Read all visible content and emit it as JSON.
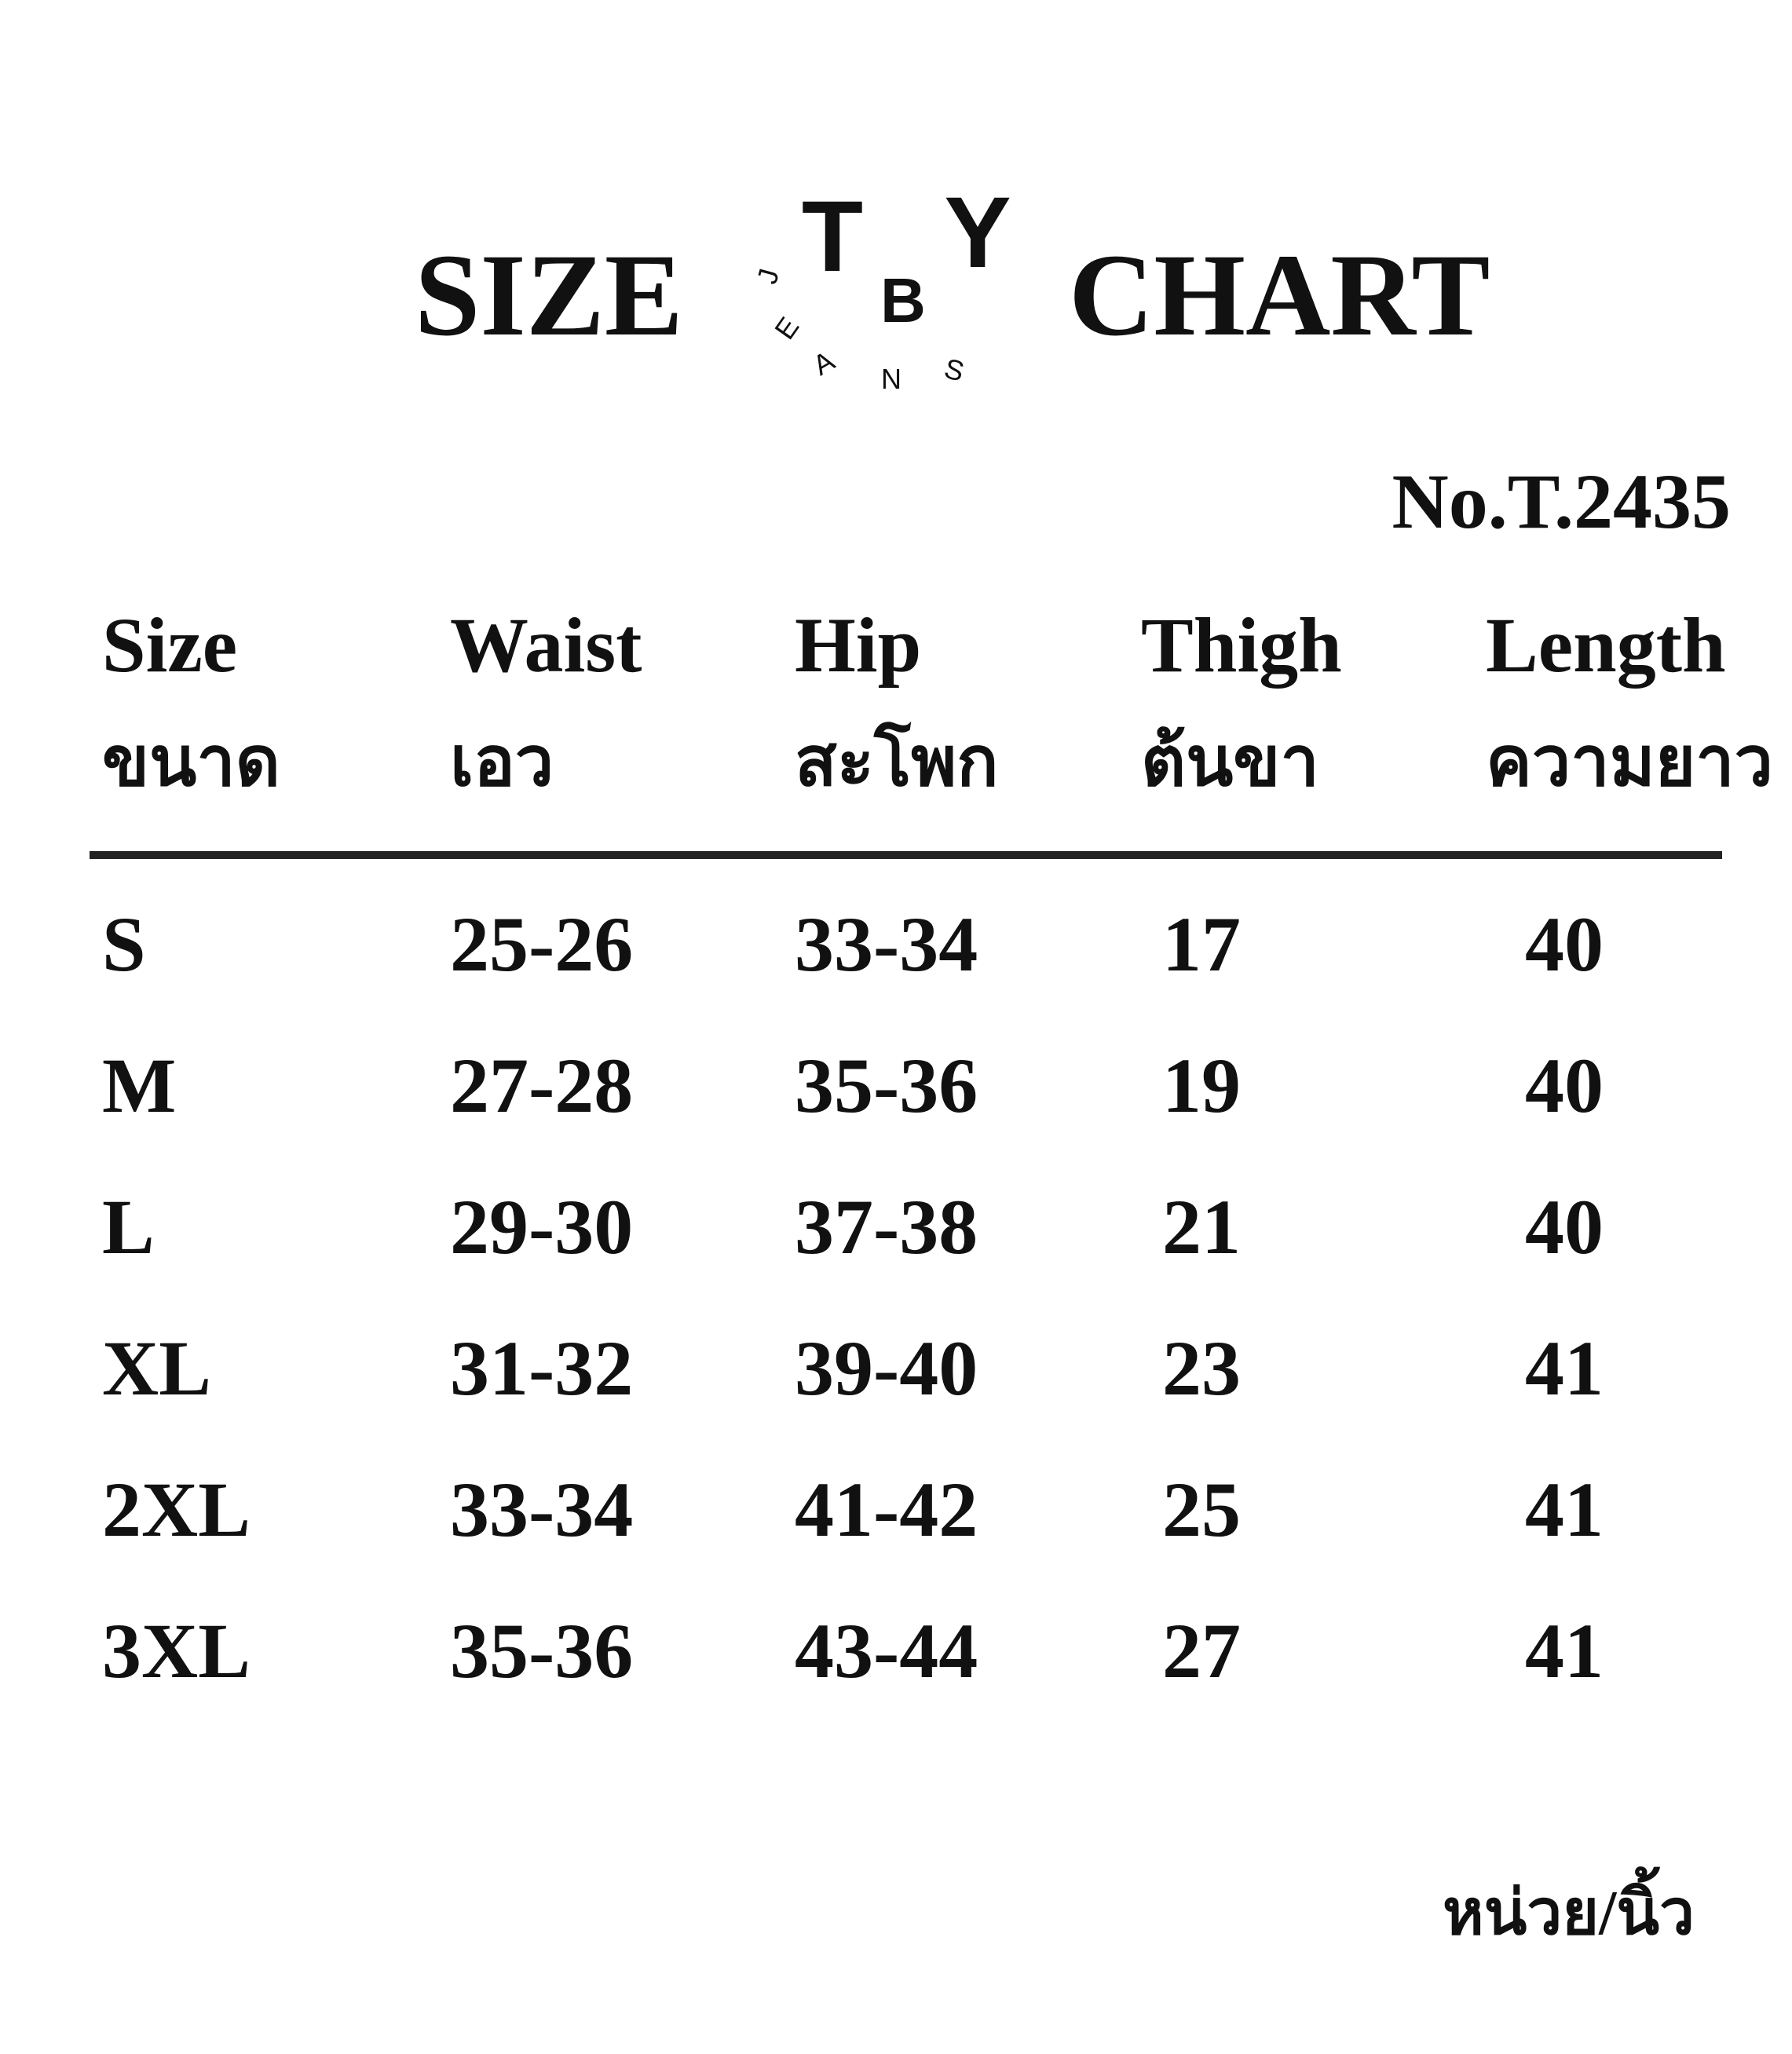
{
  "header": {
    "title_left": "SIZE",
    "title_right": "CHART",
    "logo": {
      "big": [
        "T",
        "B",
        "Y"
      ],
      "ring": [
        "J",
        "E",
        "A",
        "N",
        "S"
      ]
    },
    "model_no": "No.T.2435"
  },
  "table": {
    "columns": [
      {
        "en": "Size",
        "th": "ขนาด"
      },
      {
        "en": "Waist",
        "th": "เอว"
      },
      {
        "en": "Hip",
        "th": "สะโพก"
      },
      {
        "en": "Thigh",
        "th": "ต้นขา"
      },
      {
        "en": "Length",
        "th": "ความยาว"
      }
    ],
    "rows": [
      [
        "S",
        "25-26",
        "33-34",
        17,
        40
      ],
      [
        "M",
        "27-28",
        "35-36",
        19,
        40
      ],
      [
        "L",
        "29-30",
        "37-38",
        21,
        40
      ],
      [
        "XL",
        "31-32",
        "39-40",
        23,
        41
      ],
      [
        "2XL",
        "33-34",
        "41-42",
        25,
        41
      ],
      [
        "3XL",
        "35-36",
        "43-44",
        27,
        41
      ]
    ]
  },
  "footer": {
    "unit": "หน่วย/นิ้ว"
  }
}
